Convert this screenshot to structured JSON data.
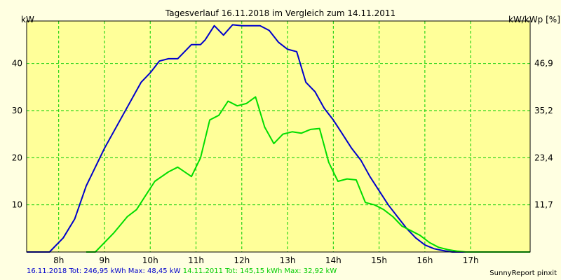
{
  "chart_data": {
    "type": "line",
    "title": "Tagesverlauf 16.11.2018 im Vergleich zum 14.11.2011",
    "ylabel_left": "kW",
    "ylabel_right": "kW/kWp [%]",
    "x_ticks": [
      "8h",
      "9h",
      "10h",
      "11h",
      "12h",
      "13h",
      "14h",
      "15h",
      "16h",
      "17h"
    ],
    "y_ticks": [
      10,
      20,
      30,
      40
    ],
    "y_right_ticks": [
      "11,7",
      "23,4",
      "35,2",
      "46,9"
    ],
    "xlim": [
      7.3,
      18.3
    ],
    "ylim": [
      0,
      49
    ],
    "grid": true,
    "series": [
      {
        "name": "16.11.2018",
        "color": "#0000cc",
        "x": [
          7.3,
          7.8,
          8.1,
          8.35,
          8.6,
          9.0,
          9.4,
          9.8,
          10.0,
          10.2,
          10.4,
          10.6,
          10.8,
          10.9,
          11.1,
          11.2,
          11.4,
          11.6,
          11.8,
          12.0,
          12.2,
          12.4,
          12.6,
          12.8,
          13.0,
          13.2,
          13.4,
          13.6,
          13.8,
          14.0,
          14.2,
          14.4,
          14.6,
          14.8,
          15.0,
          15.2,
          15.4,
          15.6,
          15.8,
          16.0,
          16.2,
          16.4,
          16.6,
          16.8,
          17.0,
          17.3
        ],
        "values": [
          0,
          0,
          3,
          7,
          14,
          22,
          29,
          36,
          38,
          40.5,
          41,
          41,
          43,
          44,
          44,
          45,
          48,
          46,
          48.2,
          48,
          48,
          48,
          47,
          44.5,
          43,
          42.5,
          36,
          34,
          30.5,
          28,
          25,
          22,
          19.5,
          16,
          13,
          10,
          7.5,
          5,
          3,
          1.5,
          0.7,
          0.3,
          0,
          0,
          0,
          0
        ]
      },
      {
        "name": "14.11.2011",
        "color": "#00dd00",
        "x": [
          8.6,
          8.8,
          9.2,
          9.5,
          9.7,
          9.9,
          10.1,
          10.4,
          10.6,
          10.9,
          11.1,
          11.3,
          11.5,
          11.7,
          11.9,
          12.1,
          12.3,
          12.5,
          12.7,
          12.9,
          13.1,
          13.3,
          13.5,
          13.7,
          13.9,
          14.1,
          14.3,
          14.5,
          14.7,
          14.9,
          15.1,
          15.3,
          15.5,
          15.7,
          15.9,
          16.1,
          16.3,
          16.5,
          16.7,
          16.9,
          17.1,
          17.3,
          17.6,
          17.9,
          18.3
        ],
        "values": [
          0,
          0,
          4,
          7.5,
          9,
          12,
          15,
          17,
          18,
          16,
          20,
          28,
          29,
          32,
          31,
          31.5,
          32.9,
          26.5,
          23,
          25,
          25.5,
          25.2,
          26,
          26.2,
          19,
          15,
          15.5,
          15.3,
          10.5,
          10,
          9,
          7.5,
          5.5,
          4.5,
          3.5,
          2,
          1,
          0.5,
          0.2,
          0,
          0,
          0,
          0,
          0,
          0
        ]
      }
    ]
  },
  "footer": {
    "series1_text": "16.11.2018 Tot: 246,95 kWh Max: 48,45 kW",
    "series2_text": "14.11.2011 Tot: 145,15 kWh Max: 32,92 kW",
    "credit": "SunnyReport pinxit"
  }
}
